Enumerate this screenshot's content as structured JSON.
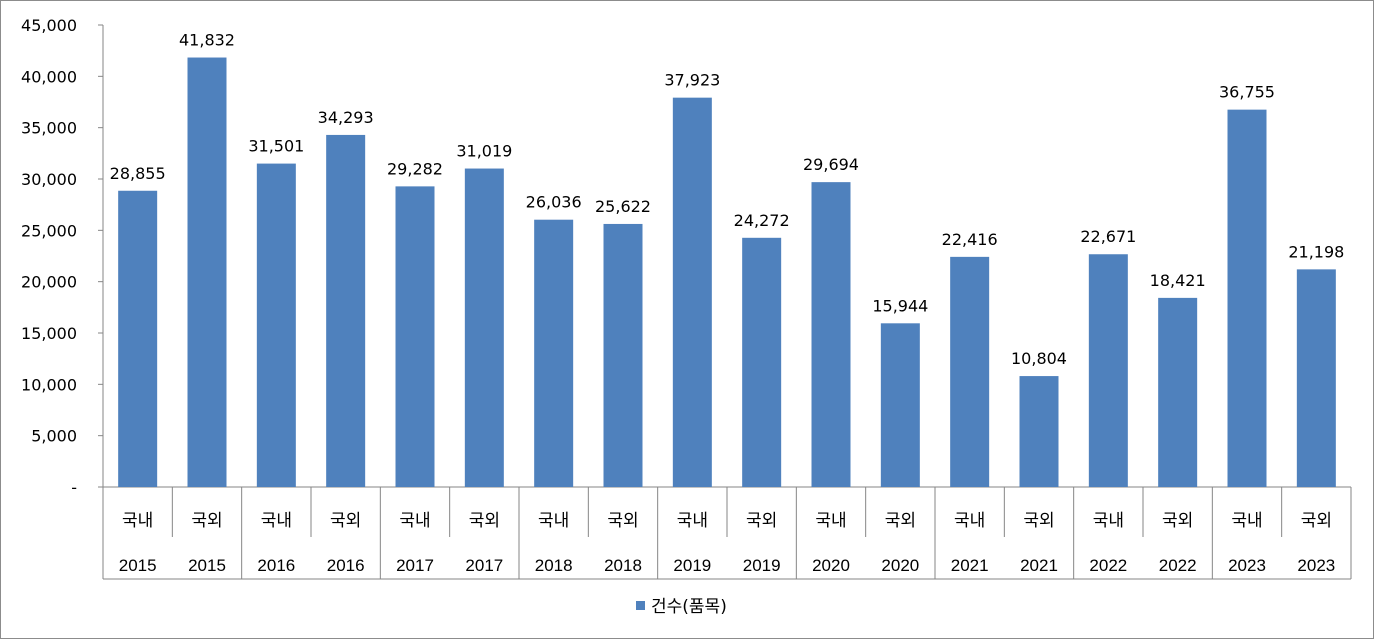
{
  "chart_data": {
    "type": "bar",
    "categories": [
      [
        "국내",
        "2015"
      ],
      [
        "국외",
        "2015"
      ],
      [
        "국내",
        "2016"
      ],
      [
        "국외",
        "2016"
      ],
      [
        "국내",
        "2017"
      ],
      [
        "국외",
        "2017"
      ],
      [
        "국내",
        "2018"
      ],
      [
        "국외",
        "2018"
      ],
      [
        "국내",
        "2019"
      ],
      [
        "국외",
        "2019"
      ],
      [
        "국내",
        "2020"
      ],
      [
        "국외",
        "2020"
      ],
      [
        "국내",
        "2021"
      ],
      [
        "국외",
        "2021"
      ],
      [
        "국내",
        "2022"
      ],
      [
        "국외",
        "2022"
      ],
      [
        "국내",
        "2023"
      ],
      [
        "국외",
        "2023"
      ]
    ],
    "series": [
      {
        "name": "건수(품목)",
        "color": "#4f81bd",
        "values": [
          28855,
          41832,
          31501,
          34293,
          29282,
          31019,
          26036,
          25622,
          37923,
          24272,
          29694,
          15944,
          22416,
          10804,
          22671,
          18421,
          36755,
          21198
        ],
        "value_labels": [
          "28,855",
          "41,832",
          "31,501",
          "34,293",
          "29,282",
          "31,019",
          "26,036",
          "25,622",
          "37,923",
          "24,272",
          "29,694",
          "15,944",
          "22,416",
          "10,804",
          "22,671",
          "18,421",
          "36,755",
          "21,198"
        ]
      }
    ],
    "y_ticks": [
      {
        "value": 0,
        "label": "-"
      },
      {
        "value": 5000,
        "label": "5,000"
      },
      {
        "value": 10000,
        "label": "10,000"
      },
      {
        "value": 15000,
        "label": "15,000"
      },
      {
        "value": 20000,
        "label": "20,000"
      },
      {
        "value": 25000,
        "label": "25,000"
      },
      {
        "value": 30000,
        "label": "30,000"
      },
      {
        "value": 35000,
        "label": "35,000"
      },
      {
        "value": 40000,
        "label": "40,000"
      },
      {
        "value": 45000,
        "label": "45,000"
      }
    ],
    "ylim": [
      0,
      45000
    ],
    "grid": false,
    "legend": "bottom",
    "title": "",
    "xlabel": "",
    "ylabel": ""
  }
}
